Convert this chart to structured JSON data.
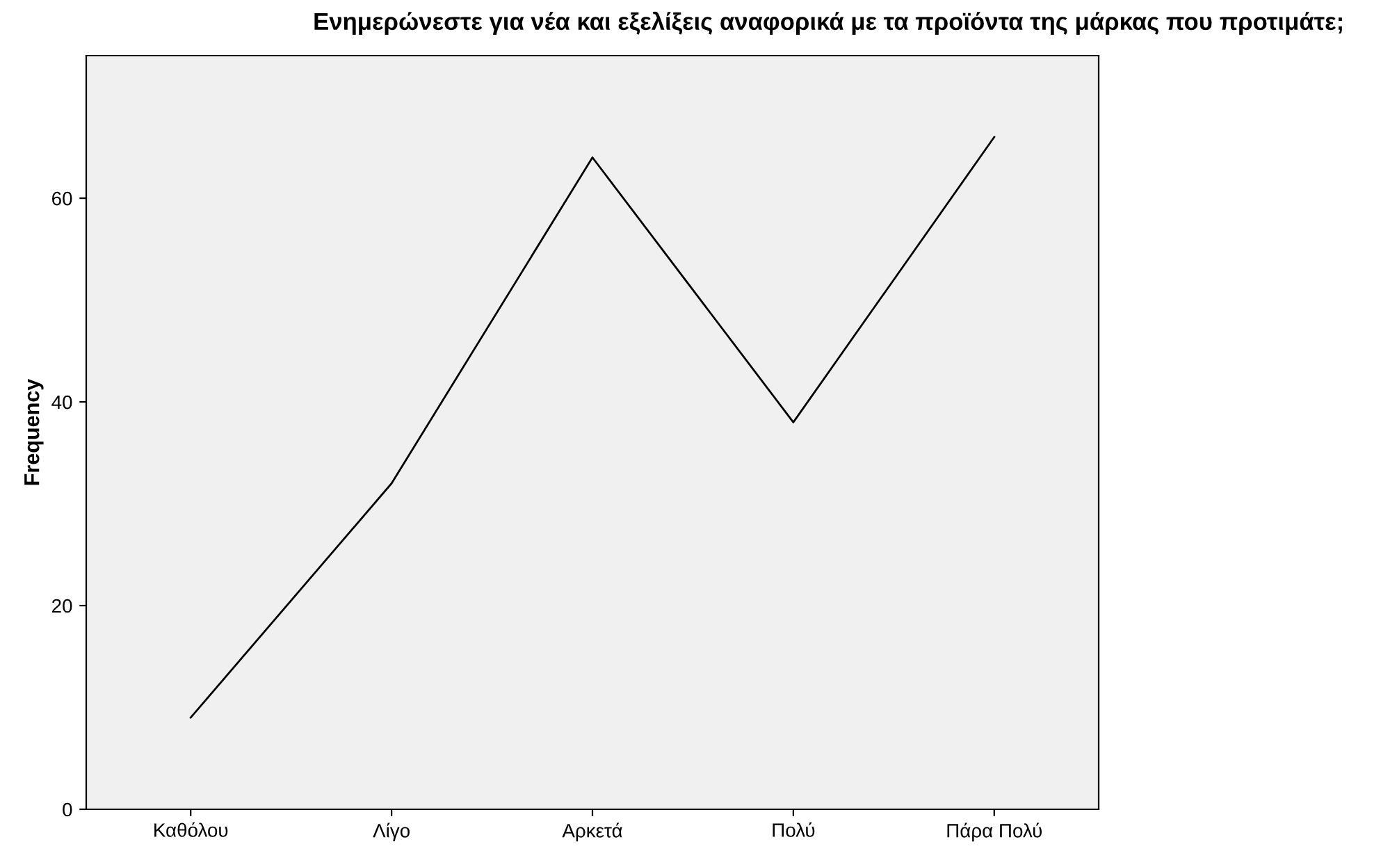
{
  "chart_data": {
    "type": "line",
    "title": "Ενημερώνεστε για νέα και εξελίξεις αναφορικά με τα προϊόντα της μάρκας που προτιμάτε;",
    "ylabel": "Frequency",
    "categories": [
      "Καθόλου",
      "Λίγο",
      "Αρκετά",
      "Πολύ",
      "Πάρα Πολύ"
    ],
    "series": [
      {
        "color": "#000000",
        "values": [
          9,
          32,
          64,
          38,
          66
        ]
      }
    ],
    "ylim": [
      0,
      74
    ],
    "yticks": [
      0,
      20,
      40,
      60
    ],
    "grid": false,
    "legend": false,
    "marker": "none",
    "line_style": "solid"
  }
}
